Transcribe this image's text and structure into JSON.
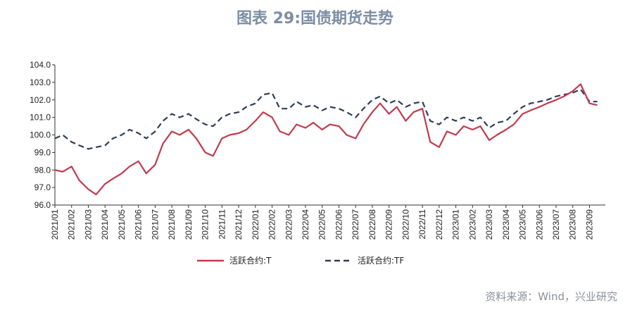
{
  "header": {
    "title": "图表 29:国债期货走势"
  },
  "footer": {
    "source": "资料来源：Wind，兴业研究"
  },
  "colors": {
    "T": "#c13a4d",
    "TF": "#2f3d55",
    "title": "#7c8ea5"
  },
  "chart_data": {
    "type": "line",
    "title": "图表 29:国债期货走势",
    "xlabel": "",
    "ylabel": "",
    "ylim": [
      96.0,
      104.0
    ],
    "y_ticks": [
      "96.0",
      "97.0",
      "98.0",
      "99.0",
      "100.0",
      "101.0",
      "102.0",
      "103.0",
      "104.0"
    ],
    "x_ticks": [
      "2021/01",
      "2021/02",
      "2021/03",
      "2021/04",
      "2021/05",
      "2021/06",
      "2021/07",
      "2021/08",
      "2021/09",
      "2021/10",
      "2021/11",
      "2021/12",
      "2022/01",
      "2022/02",
      "2022/03",
      "2022/04",
      "2022/05",
      "2022/06",
      "2022/07",
      "2022/08",
      "2022/09",
      "2022/10",
      "2022/11",
      "2022/12",
      "2023/01",
      "2023/02",
      "2023/03",
      "2023/04",
      "2023/05",
      "2023/06",
      "2023/07",
      "2023/08",
      "2023/09"
    ],
    "legend_position": "bottom-center",
    "grid": false,
    "series": [
      {
        "name": "活跃合约:T",
        "style": "solid",
        "x": [
          "2021/01",
          "2021/01/15",
          "2021/02",
          "2021/02/15",
          "2021/03",
          "2021/03/15",
          "2021/04",
          "2021/04/15",
          "2021/05",
          "2021/05/15",
          "2021/06",
          "2021/06/15",
          "2021/07",
          "2021/07/15",
          "2021/08",
          "2021/08/15",
          "2021/09",
          "2021/09/15",
          "2021/10",
          "2021/10/15",
          "2021/11",
          "2021/11/15",
          "2021/12",
          "2021/12/15",
          "2022/01",
          "2022/01/15",
          "2022/02",
          "2022/02/15",
          "2022/03",
          "2022/03/15",
          "2022/04",
          "2022/04/15",
          "2022/05",
          "2022/05/15",
          "2022/06",
          "2022/06/15",
          "2022/07",
          "2022/07/15",
          "2022/08",
          "2022/08/15",
          "2022/09",
          "2022/09/15",
          "2022/10",
          "2022/10/15",
          "2022/11",
          "2022/11/15",
          "2022/12",
          "2022/12/15",
          "2023/01",
          "2023/01/15",
          "2023/02",
          "2023/02/15",
          "2023/03",
          "2023/03/15",
          "2023/04",
          "2023/04/15",
          "2023/05",
          "2023/05/15",
          "2023/06",
          "2023/06/15",
          "2023/07",
          "2023/07/15",
          "2023/08",
          "2023/08/15",
          "2023/09",
          "2023/09/15"
        ],
        "values": [
          98.0,
          97.9,
          98.2,
          97.4,
          96.9,
          96.6,
          97.2,
          97.5,
          97.8,
          98.2,
          98.5,
          97.8,
          98.3,
          99.5,
          100.2,
          100.0,
          100.3,
          99.8,
          99.0,
          98.8,
          99.8,
          100.0,
          100.1,
          100.3,
          100.8,
          101.3,
          101.0,
          100.2,
          100.0,
          100.6,
          100.4,
          100.7,
          100.3,
          100.6,
          100.5,
          100.0,
          99.8,
          100.6,
          101.3,
          101.8,
          101.2,
          101.6,
          100.8,
          101.3,
          101.5,
          99.6,
          99.3,
          100.2,
          100.0,
          100.5,
          100.3,
          100.5,
          99.7,
          100.0,
          100.3,
          100.6,
          101.2,
          101.4,
          101.6,
          101.8,
          102.0,
          102.2,
          102.5,
          102.9,
          101.8,
          101.7
        ]
      },
      {
        "name": "活跃合约:TF",
        "style": "dashed",
        "x": [
          "2021/01",
          "2021/01/15",
          "2021/02",
          "2021/02/15",
          "2021/03",
          "2021/03/15",
          "2021/04",
          "2021/04/15",
          "2021/05",
          "2021/05/15",
          "2021/06",
          "2021/06/15",
          "2021/07",
          "2021/07/15",
          "2021/08",
          "2021/08/15",
          "2021/09",
          "2021/09/15",
          "2021/10",
          "2021/10/15",
          "2021/11",
          "2021/11/15",
          "2021/12",
          "2021/12/15",
          "2022/01",
          "2022/01/15",
          "2022/02",
          "2022/02/15",
          "2022/03",
          "2022/03/15",
          "2022/04",
          "2022/04/15",
          "2022/05",
          "2022/05/15",
          "2022/06",
          "2022/06/15",
          "2022/07",
          "2022/07/15",
          "2022/08",
          "2022/08/15",
          "2022/09",
          "2022/09/15",
          "2022/10",
          "2022/10/15",
          "2022/11",
          "2022/11/15",
          "2022/12",
          "2022/12/15",
          "2023/01",
          "2023/01/15",
          "2023/02",
          "2023/02/15",
          "2023/03",
          "2023/03/15",
          "2023/04",
          "2023/04/15",
          "2023/05",
          "2023/05/15",
          "2023/06",
          "2023/06/15",
          "2023/07",
          "2023/07/15",
          "2023/08",
          "2023/08/15",
          "2023/09",
          "2023/09/15"
        ],
        "values": [
          99.8,
          100.0,
          99.6,
          99.4,
          99.2,
          99.3,
          99.4,
          99.8,
          100.0,
          100.3,
          100.1,
          99.8,
          100.2,
          100.8,
          101.2,
          101.0,
          101.2,
          100.9,
          100.6,
          100.5,
          101.0,
          101.2,
          101.3,
          101.6,
          101.8,
          102.3,
          102.4,
          101.5,
          101.5,
          101.9,
          101.6,
          101.7,
          101.4,
          101.6,
          101.5,
          101.3,
          101.0,
          101.5,
          102.0,
          102.2,
          101.8,
          102.0,
          101.6,
          101.8,
          101.9,
          100.8,
          100.6,
          101.0,
          100.8,
          101.0,
          100.8,
          101.0,
          100.4,
          100.7,
          100.8,
          101.2,
          101.6,
          101.8,
          101.9,
          102.0,
          102.2,
          102.3,
          102.4,
          102.6,
          101.9,
          101.9
        ]
      }
    ]
  }
}
